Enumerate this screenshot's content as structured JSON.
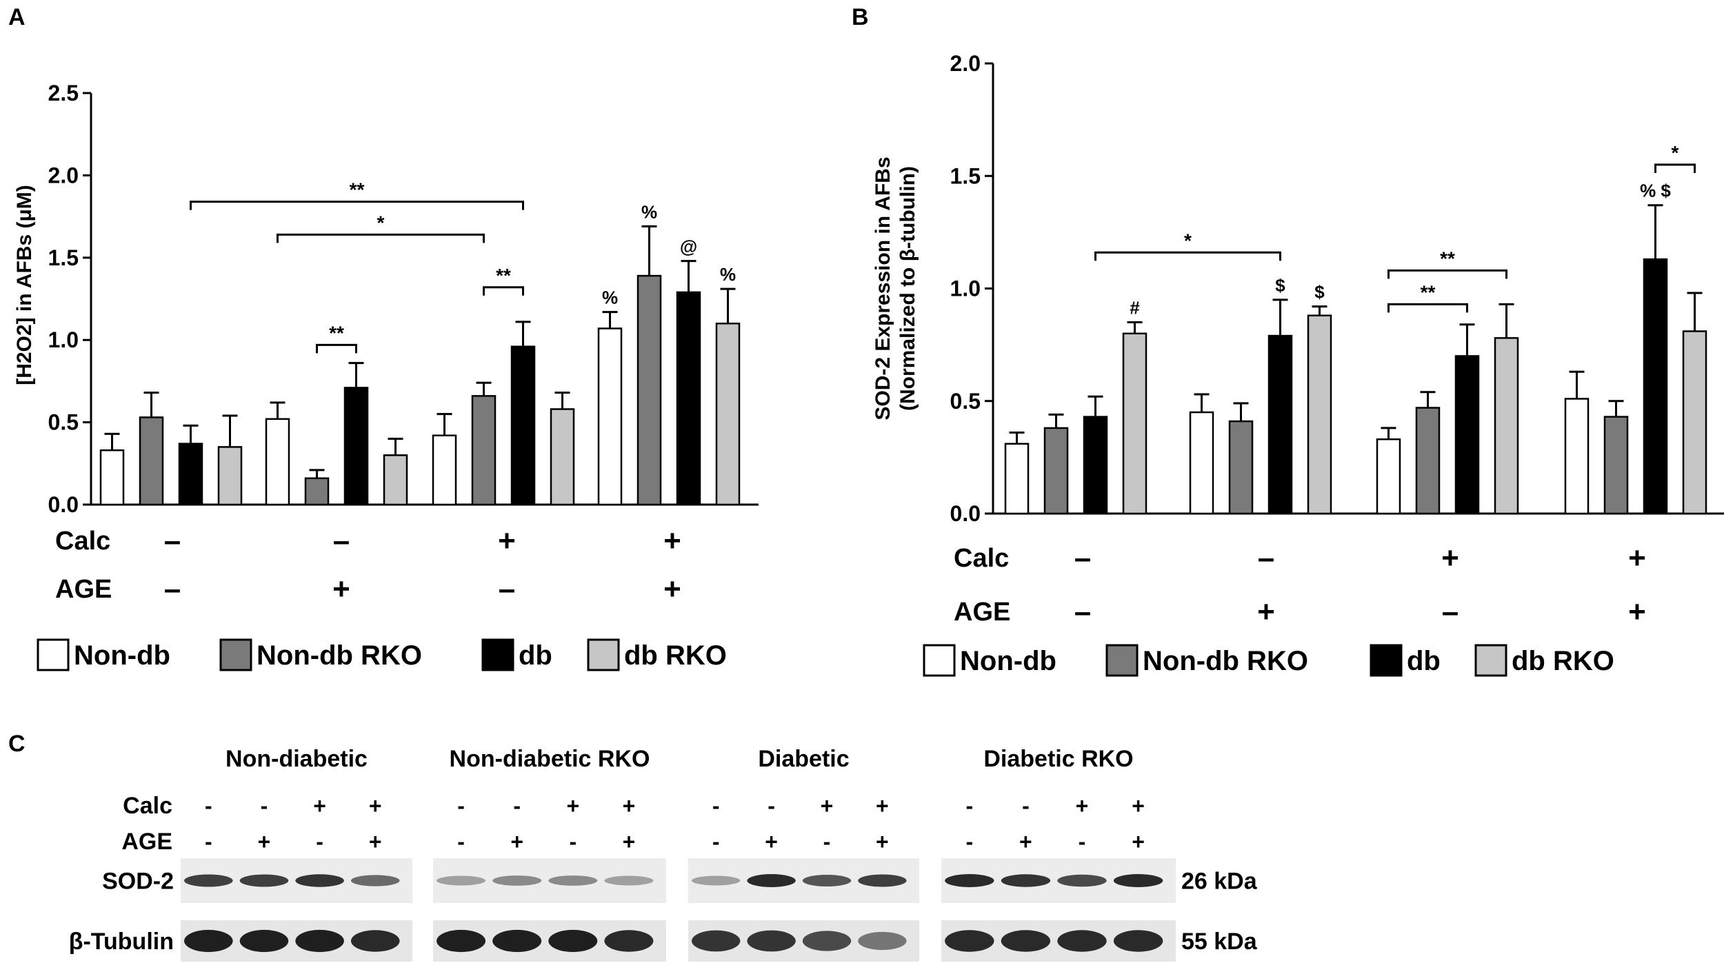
{
  "colors": {
    "non_db": "#ffffff",
    "non_db_rko": "#7a7a7a",
    "db": "#000000",
    "db_rko": "#c6c6c6"
  },
  "conditions": {
    "calc_label": "Calc",
    "age_label": "AGE",
    "calc": [
      "–",
      "–",
      "+",
      "+"
    ],
    "age": [
      "–",
      "+",
      "–",
      "+"
    ]
  },
  "legend": [
    {
      "label": "Non-db",
      "color": "#ffffff"
    },
    {
      "label": "Non-db RKO",
      "color": "#7a7a7a"
    },
    {
      "label": "db",
      "color": "#000000"
    },
    {
      "label": "db RKO",
      "color": "#c6c6c6"
    }
  ],
  "chart_data": [
    {
      "panel": "A",
      "type": "bar",
      "ylabel": "[H2O2] in AFBs (μM)",
      "ylim": [
        0,
        2.5
      ],
      "yticks": [
        "0.0",
        "0.5",
        "1.0",
        "1.5",
        "2.0",
        "2.5"
      ],
      "categories": [
        "Calc – / AGE –",
        "Calc – / AGE +",
        "Calc + / AGE –",
        "Calc + / AGE +"
      ],
      "series": [
        {
          "name": "Non-db",
          "values": [
            0.33,
            0.52,
            0.42,
            1.07
          ],
          "errors": [
            0.1,
            0.1,
            0.13,
            0.1
          ],
          "marks": [
            "",
            "",
            "",
            "%"
          ]
        },
        {
          "name": "Non-db RKO",
          "values": [
            0.53,
            0.16,
            0.66,
            1.39
          ],
          "errors": [
            0.15,
            0.05,
            0.08,
            0.3
          ],
          "marks": [
            "",
            "",
            "",
            "%"
          ]
        },
        {
          "name": "db",
          "values": [
            0.37,
            0.71,
            0.96,
            1.29
          ],
          "errors": [
            0.11,
            0.15,
            0.15,
            0.19
          ],
          "marks": [
            "",
            "",
            "",
            "@"
          ]
        },
        {
          "name": "db RKO",
          "values": [
            0.35,
            0.3,
            0.58,
            1.1
          ],
          "errors": [
            0.19,
            0.1,
            0.1,
            0.21
          ],
          "marks": [
            "",
            "",
            "",
            "%"
          ]
        }
      ],
      "significance": [
        {
          "label": "**",
          "from": [
            0,
            2
          ],
          "to": [
            2,
            2
          ],
          "y": 1.84
        },
        {
          "label": "*",
          "from": [
            1,
            0
          ],
          "to": [
            2,
            1
          ],
          "y": 1.64
        },
        {
          "label": "**",
          "from": [
            2,
            1
          ],
          "to": [
            2,
            2
          ],
          "y": 1.32
        },
        {
          "label": "**",
          "from": [
            1,
            1
          ],
          "to": [
            1,
            2
          ],
          "y": 0.97
        }
      ]
    },
    {
      "panel": "B",
      "type": "bar",
      "ylabel": "SOD-2 Expression in AFBs (Normalized to β-tubulin)",
      "ylim": [
        0,
        2.0
      ],
      "yticks": [
        "0.0",
        "0.5",
        "1.0",
        "1.5",
        "2.0"
      ],
      "categories": [
        "Calc – / AGE –",
        "Calc – / AGE +",
        "Calc + / AGE –",
        "Calc + / AGE +"
      ],
      "series": [
        {
          "name": "Non-db",
          "values": [
            0.31,
            0.45,
            0.33,
            0.51
          ],
          "errors": [
            0.05,
            0.08,
            0.05,
            0.12
          ],
          "marks": [
            "",
            "",
            "",
            ""
          ]
        },
        {
          "name": "Non-db RKO",
          "values": [
            0.38,
            0.41,
            0.47,
            0.43
          ],
          "errors": [
            0.06,
            0.08,
            0.07,
            0.07
          ],
          "marks": [
            "",
            "",
            "",
            ""
          ]
        },
        {
          "name": "db",
          "values": [
            0.43,
            0.79,
            0.7,
            1.13
          ],
          "errors": [
            0.09,
            0.16,
            0.14,
            0.24
          ],
          "marks": [
            "",
            "$",
            "",
            "% $"
          ]
        },
        {
          "name": "db RKO",
          "values": [
            0.8,
            0.88,
            0.78,
            0.81
          ],
          "errors": [
            0.05,
            0.04,
            0.15,
            0.17
          ],
          "marks": [
            "#",
            "$",
            "",
            ""
          ]
        }
      ],
      "significance": [
        {
          "label": "*",
          "from": [
            0,
            2
          ],
          "to": [
            1,
            2
          ],
          "y": 1.16
        },
        {
          "label": "**",
          "from": [
            2,
            0
          ],
          "to": [
            2,
            3
          ],
          "y": 1.08
        },
        {
          "label": "**",
          "from": [
            2,
            0
          ],
          "to": [
            2,
            2
          ],
          "y": 0.93
        },
        {
          "label": "*",
          "from": [
            3,
            2
          ],
          "to": [
            3,
            3
          ],
          "y": 1.55
        }
      ]
    }
  ],
  "blot": {
    "panel": "C",
    "groups": [
      "Non-diabetic",
      "Non-diabetic RKO",
      "Diabetic",
      "Diabetic RKO"
    ],
    "calc_label": "Calc",
    "age_label": "AGE",
    "calc": [
      "-",
      "-",
      "+",
      "+"
    ],
    "age": [
      "-",
      "+",
      "-",
      "+"
    ],
    "rows": [
      {
        "label": "SOD-2",
        "kda": "26 kDa",
        "intensity": [
          [
            0.8,
            0.8,
            0.85,
            0.6
          ],
          [
            0.35,
            0.45,
            0.45,
            0.35
          ],
          [
            0.35,
            0.9,
            0.7,
            0.8
          ],
          [
            0.9,
            0.85,
            0.75,
            0.9
          ]
        ]
      },
      {
        "label": "β-Tubulin",
        "kda": "55 kDa",
        "intensity": [
          [
            0.95,
            0.95,
            0.95,
            0.9
          ],
          [
            0.95,
            0.95,
            0.95,
            0.9
          ],
          [
            0.85,
            0.85,
            0.75,
            0.55
          ],
          [
            0.9,
            0.9,
            0.9,
            0.9
          ]
        ]
      }
    ]
  }
}
